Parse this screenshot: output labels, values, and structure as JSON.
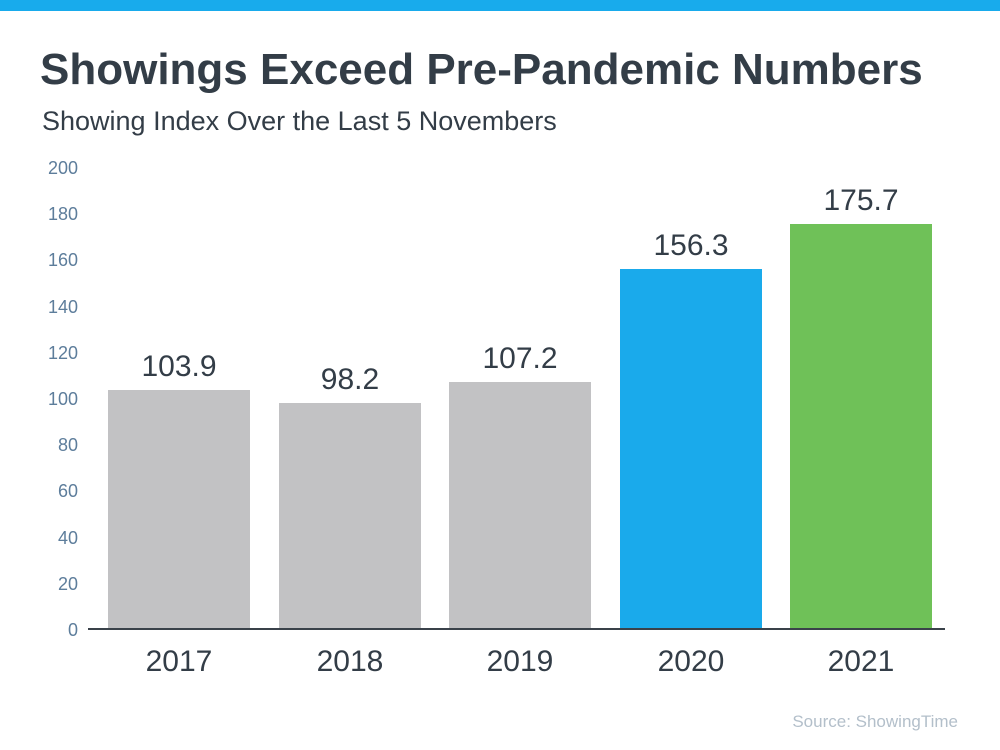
{
  "header": {
    "title": "Showings Exceed Pre-Pandemic Numbers",
    "subtitle": "Showing Index Over the Last 5 Novembers"
  },
  "footer": {
    "source": "Source: ShowingTime"
  },
  "colors": {
    "top_banner": "#18abec",
    "title_text": "#333d47",
    "y_axis_label": "#5d7d9b",
    "axis_line": "#3a424a",
    "bar_gray": "#c2c2c4",
    "bar_blue": "#1aaaeb",
    "bar_green": "#6fc158",
    "source_text": "#b3bfca"
  },
  "chart_data": {
    "type": "bar",
    "title": "Showings Exceed Pre-Pandemic Numbers",
    "subtitle": "Showing Index Over the Last 5 Novembers",
    "categories": [
      "2017",
      "2018",
      "2019",
      "2020",
      "2021"
    ],
    "values": [
      103.9,
      98.2,
      107.2,
      156.3,
      175.7
    ],
    "value_labels": [
      "103.9",
      "98.2",
      "107.2",
      "156.3",
      "175.7"
    ],
    "bar_colors": [
      "#c2c2c4",
      "#c2c2c4",
      "#c2c2c4",
      "#1aaaeb",
      "#6fc158"
    ],
    "xlabel": "",
    "ylabel": "",
    "ylim": [
      0,
      200
    ],
    "y_ticks": [
      200,
      180,
      160,
      140,
      120,
      100,
      80,
      60,
      40,
      20,
      0
    ],
    "grid": false,
    "legend": false,
    "annotation": "Source: ShowingTime"
  }
}
